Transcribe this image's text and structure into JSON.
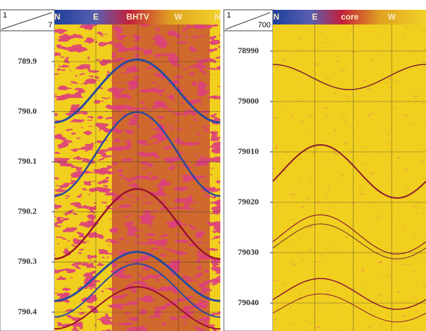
{
  "left_panel": {
    "scale": {
      "top": "1",
      "bottom": "7"
    },
    "header": [
      "N",
      "E",
      "BHTV",
      "W",
      "N"
    ],
    "depths": [
      "789.9",
      "790.0",
      "790.1",
      "790.2",
      "790.3",
      "790.4"
    ]
  },
  "right_panel": {
    "scale": {
      "top": "1",
      "bottom": "700"
    },
    "header": [
      "N",
      "E",
      "core",
      "W"
    ],
    "depths": [
      "78990",
      "79000",
      "79010",
      "79020",
      "79030",
      "79040"
    ]
  }
}
